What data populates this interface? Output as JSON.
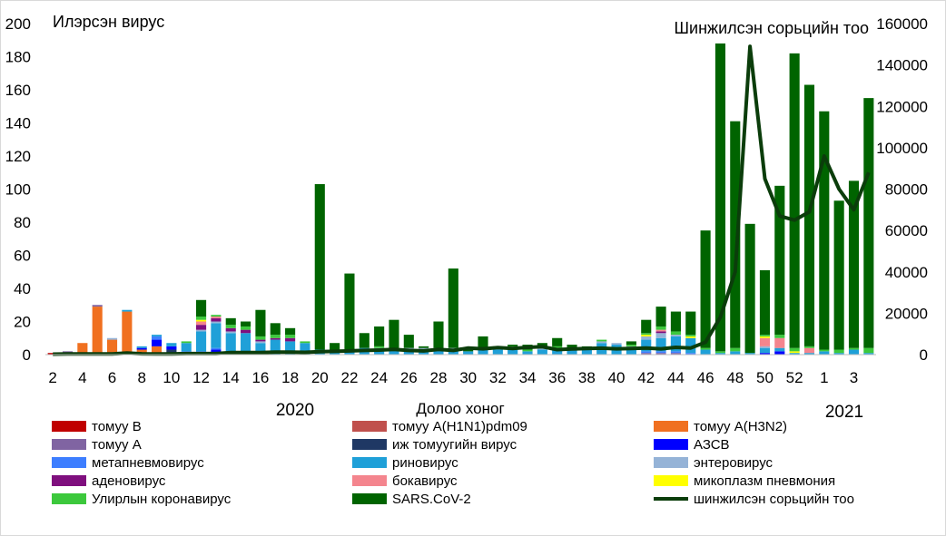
{
  "chart_data": {
    "type": "bar",
    "left_axis_title": "Илэрсэн вирус",
    "right_axis_title": "Шинжилсэн сорьцийн тоо",
    "xlabel": "Долоо хоног",
    "year_labels": [
      {
        "label": "2020",
        "at_week_index": 18
      },
      {
        "label": "2021",
        "at_week_index": 52
      }
    ],
    "y_left": {
      "min": 0,
      "max": 200,
      "ticks": [
        "0",
        "20",
        "40",
        "60",
        "80",
        "100",
        "120",
        "140",
        "160",
        "180",
        "200"
      ]
    },
    "y_right": {
      "min": 0,
      "max": 160000,
      "ticks": [
        "0",
        "20000",
        "40000",
        "60000",
        "80000",
        "100000",
        "120000",
        "140000",
        "160000"
      ]
    },
    "categories": [
      "2",
      "3",
      "4",
      "5",
      "6",
      "7",
      "8",
      "9",
      "10",
      "11",
      "12",
      "13",
      "14",
      "15",
      "16",
      "17",
      "18",
      "19",
      "20",
      "21",
      "22",
      "23",
      "24",
      "25",
      "26",
      "27",
      "28",
      "29",
      "30",
      "31",
      "32",
      "33",
      "34",
      "35",
      "36",
      "37",
      "38",
      "39",
      "40",
      "41",
      "42",
      "43",
      "44",
      "45",
      "46",
      "47",
      "48",
      "49",
      "50",
      "51",
      "52",
      "53",
      "1",
      "2",
      "3",
      "4"
    ],
    "x_tick_labels": [
      "2",
      "",
      "4",
      "",
      "6",
      "",
      "8",
      "",
      "10",
      "",
      "12",
      "",
      "14",
      "",
      "16",
      "",
      "18",
      "",
      "20",
      "",
      "22",
      "",
      "24",
      "",
      "26",
      "",
      "28",
      "",
      "30",
      "",
      "32",
      "",
      "34",
      "",
      "36",
      "",
      "38",
      "",
      "40",
      "",
      "42",
      "",
      "44",
      "",
      "46",
      "",
      "48",
      "",
      "50",
      "",
      "52",
      "",
      "1",
      "",
      "3",
      ""
    ],
    "stack_series": [
      {
        "name": "томуу В",
        "color": "#c00000",
        "values": [
          1,
          0,
          0,
          0,
          0,
          0,
          0,
          0,
          0,
          0,
          0,
          0,
          0,
          0,
          0,
          0,
          0,
          0,
          0,
          0,
          0,
          0,
          0,
          0,
          0,
          0,
          0,
          0,
          0,
          0,
          0,
          0,
          0,
          0,
          0,
          0,
          0,
          0,
          0,
          0,
          0,
          0,
          0,
          0,
          0,
          0,
          0,
          0,
          0,
          0,
          0,
          0,
          0,
          0,
          0,
          0
        ]
      },
      {
        "name": "томуу А(H1N1)pdm09",
        "color": "#c0504d",
        "values": [
          0,
          0,
          0,
          0,
          0,
          0,
          0,
          0,
          0,
          0,
          0,
          0,
          0,
          0,
          0,
          0,
          0,
          0,
          0,
          0,
          0,
          0,
          0,
          0,
          0,
          0,
          0,
          0,
          0,
          0,
          0,
          0,
          0,
          0,
          0,
          0,
          0,
          0,
          0,
          0,
          0,
          0,
          0,
          0,
          0,
          0,
          0,
          0,
          0,
          0,
          0,
          0,
          0,
          0,
          0,
          0
        ]
      },
      {
        "name": "томуу А(H3N2)",
        "color": "#f07020",
        "values": [
          0,
          1,
          7,
          29,
          9,
          26,
          3,
          5,
          0,
          1,
          0,
          0,
          0,
          0,
          0,
          0,
          0,
          0,
          0,
          0,
          0,
          0,
          0,
          0,
          0,
          0,
          0,
          0,
          0,
          0,
          0,
          0,
          0,
          0,
          0,
          0,
          0,
          0,
          0,
          0,
          0,
          0,
          0,
          0,
          0,
          0,
          0,
          0,
          0,
          0,
          0,
          0,
          0,
          0,
          0,
          0
        ]
      },
      {
        "name": "томуу А",
        "color": "#8064a2",
        "values": [
          0,
          1,
          0,
          1,
          0,
          0,
          0,
          0,
          0,
          0,
          0,
          0,
          0,
          0,
          0,
          0,
          0,
          0,
          0,
          0,
          0,
          0,
          0,
          0,
          0,
          0,
          0,
          0,
          0,
          0,
          0,
          0,
          0,
          0,
          0,
          0,
          0,
          0,
          0,
          0,
          1,
          1,
          1,
          0,
          0,
          0,
          0,
          0,
          0,
          0,
          0,
          0,
          0,
          0,
          0,
          0
        ]
      },
      {
        "name": "иж томуугийн вирус",
        "color": "#1f3864",
        "values": [
          0,
          0,
          0,
          0,
          0,
          0,
          0,
          0,
          3,
          0,
          0,
          0,
          0,
          0,
          0,
          0,
          0,
          0,
          0,
          0,
          0,
          0,
          0,
          0,
          0,
          0,
          0,
          0,
          0,
          0,
          0,
          0,
          0,
          0,
          0,
          0,
          0,
          0,
          0,
          0,
          0,
          0,
          0,
          0,
          0,
          0,
          0,
          0,
          0,
          0,
          0,
          0,
          0,
          0,
          0,
          0
        ]
      },
      {
        "name": "АЗСВ",
        "color": "#0000ff",
        "values": [
          0,
          0,
          0,
          0,
          0,
          0,
          1,
          4,
          2,
          0,
          1,
          3,
          0,
          0,
          0,
          0,
          0,
          0,
          0,
          0,
          0,
          0,
          0,
          0,
          0,
          0,
          0,
          0,
          0,
          0,
          0,
          0,
          0,
          0,
          0,
          0,
          0,
          0,
          0,
          0,
          0,
          0,
          0,
          0,
          0,
          0,
          0,
          0,
          1,
          2,
          0,
          0,
          0,
          0,
          0,
          0
        ]
      },
      {
        "name": "метапневмовирус",
        "color": "#3d7eff",
        "values": [
          0,
          0,
          0,
          0,
          0,
          0,
          0,
          2,
          0,
          1,
          1,
          1,
          0,
          0,
          0,
          0,
          0,
          0,
          0,
          0,
          0,
          0,
          0,
          0,
          0,
          0,
          0,
          0,
          0,
          0,
          0,
          0,
          0,
          0,
          0,
          0,
          0,
          0,
          0,
          0,
          1,
          1,
          1,
          1,
          0,
          0,
          0,
          0,
          0,
          0,
          0,
          0,
          0,
          0,
          0,
          0
        ]
      },
      {
        "name": "риновирус",
        "color": "#1fa0d8",
        "values": [
          0,
          0,
          0,
          0,
          0,
          1,
          1,
          1,
          2,
          5,
          12,
          15,
          13,
          13,
          7,
          9,
          8,
          7,
          3,
          2,
          2,
          4,
          3,
          3,
          3,
          3,
          3,
          3,
          2,
          3,
          3,
          3,
          2,
          3,
          3,
          3,
          3,
          7,
          6,
          4,
          7,
          8,
          9,
          9,
          3,
          1,
          2,
          1,
          3,
          2,
          1,
          1,
          2,
          1,
          3,
          1
        ]
      },
      {
        "name": "энтеровирус",
        "color": "#95b3d7",
        "values": [
          0,
          0,
          0,
          0,
          1,
          0,
          0,
          0,
          0,
          0,
          1,
          1,
          1,
          0,
          1,
          0,
          0,
          0,
          0,
          0,
          1,
          0,
          1,
          0,
          1,
          1,
          1,
          1,
          0,
          0,
          1,
          1,
          0,
          1,
          1,
          1,
          1,
          1,
          1,
          1,
          2,
          3,
          1,
          0,
          0,
          0,
          0,
          0,
          1,
          0,
          0,
          0,
          0,
          0,
          0,
          0
        ]
      },
      {
        "name": "аденовирус",
        "color": "#7f0f7e",
        "values": [
          0,
          0,
          0,
          0,
          0,
          0,
          0,
          0,
          0,
          0,
          3,
          2,
          2,
          2,
          1,
          1,
          2,
          0,
          0,
          0,
          0,
          0,
          0,
          0,
          0,
          0,
          0,
          0,
          0,
          0,
          0,
          0,
          0,
          0,
          0,
          0,
          0,
          0,
          0,
          0,
          0,
          1,
          0,
          0,
          0,
          0,
          0,
          0,
          0,
          0,
          0,
          0,
          0,
          0,
          0,
          0
        ]
      },
      {
        "name": "бокавирус",
        "color": "#f4858e",
        "values": [
          0,
          0,
          0,
          0,
          0,
          0,
          0,
          0,
          0,
          0,
          2,
          1,
          0,
          0,
          0,
          0,
          0,
          0,
          0,
          0,
          0,
          0,
          0,
          0,
          0,
          0,
          0,
          0,
          0,
          0,
          0,
          0,
          0,
          0,
          0,
          0,
          0,
          0,
          0,
          0,
          0,
          1,
          0,
          0,
          0,
          0,
          0,
          0,
          5,
          6,
          0,
          3,
          0,
          0,
          0,
          0
        ]
      },
      {
        "name": "микоплазм пневмония",
        "color": "#ffff00",
        "values": [
          0,
          0,
          0,
          0,
          0,
          0,
          0,
          0,
          0,
          0,
          1,
          0,
          0,
          0,
          0,
          0,
          0,
          0,
          0,
          0,
          0,
          0,
          0,
          0,
          0,
          0,
          0,
          0,
          0,
          0,
          0,
          0,
          0,
          0,
          0,
          0,
          0,
          0,
          0,
          0,
          1,
          0,
          0,
          1,
          0,
          0,
          0,
          0,
          1,
          0,
          1,
          0,
          0,
          0,
          0,
          0
        ]
      },
      {
        "name": "Улирлын коронавирус",
        "color": "#3cc83c",
        "values": [
          0,
          0,
          0,
          0,
          0,
          0,
          0,
          0,
          0,
          1,
          2,
          1,
          2,
          2,
          2,
          2,
          2,
          1,
          0,
          0,
          0,
          0,
          1,
          1,
          0,
          0,
          0,
          0,
          0,
          0,
          1,
          1,
          1,
          1,
          1,
          0,
          0,
          1,
          0,
          1,
          1,
          2,
          2,
          1,
          1,
          1,
          2,
          0,
          1,
          2,
          2,
          1,
          1,
          2,
          1,
          3
        ]
      },
      {
        "name": "SARS.CoV-2",
        "color": "#006400",
        "values": [
          0,
          0,
          0,
          0,
          0,
          0,
          0,
          0,
          0,
          0,
          10,
          0,
          4,
          3,
          16,
          7,
          4,
          0,
          100,
          5,
          46,
          9,
          12,
          17,
          8,
          1,
          16,
          48,
          1,
          8,
          0,
          1,
          3,
          2,
          5,
          2,
          1,
          0,
          0,
          2,
          8,
          12,
          12,
          14,
          71,
          186,
          137,
          78,
          39,
          90,
          178,
          158,
          144,
          90,
          101,
          151
        ]
      }
    ],
    "line_series": {
      "name": "шинжилсэн сорьцийн тоо",
      "color": "#0b3d0b",
      "values": [
        200,
        300,
        300,
        300,
        300,
        800,
        400,
        300,
        300,
        500,
        500,
        500,
        1000,
        1000,
        1000,
        1200,
        1200,
        1100,
        1400,
        1600,
        1800,
        2000,
        2200,
        2500,
        2000,
        1800,
        2500,
        2000,
        3200,
        2800,
        3400,
        3000,
        3500,
        3800,
        2400,
        2700,
        3000,
        3100,
        2800,
        3000,
        3200,
        2800,
        3500,
        3200,
        6000,
        18000,
        40000,
        149000,
        85000,
        67000,
        65000,
        69000,
        96000,
        80000,
        70000,
        88000
      ]
    },
    "legend_placement": "bottom"
  }
}
